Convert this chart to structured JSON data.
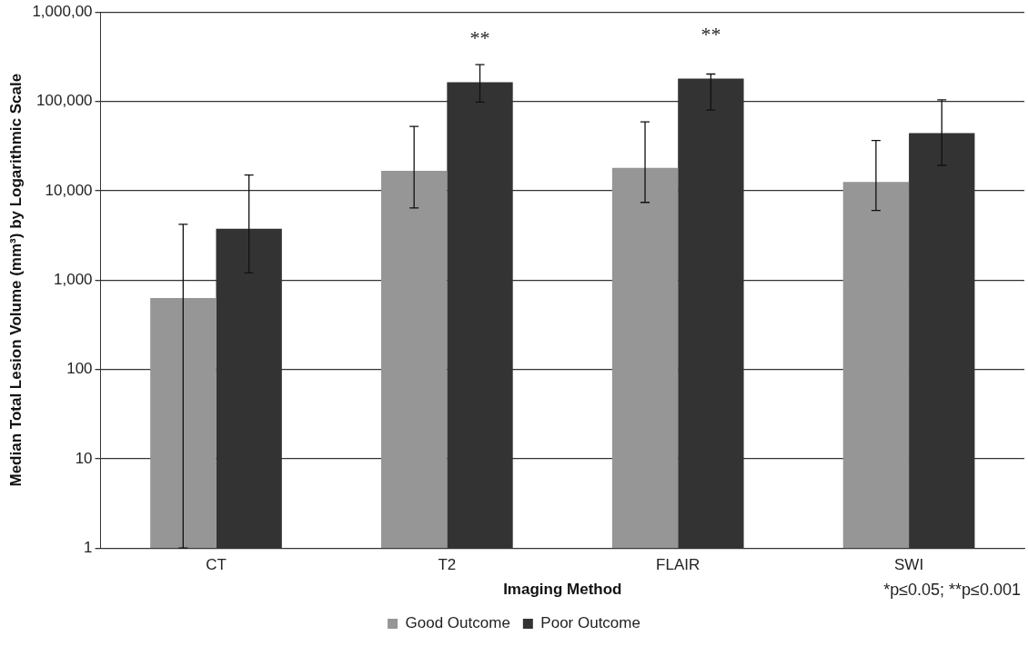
{
  "chart_data": {
    "type": "bar",
    "xlabel": "Imaging Method",
    "ylabel": "Median Total Lesion Volume (mm³) by Logarithmic Scale",
    "categories": [
      "CT",
      "T2",
      "FLAIR",
      "SWI"
    ],
    "series": [
      {
        "name": "Good Outcome",
        "color": "#969696",
        "values": [
          630,
          16700,
          18000,
          12500
        ],
        "errors": [
          [
            1,
            4200
          ],
          [
            6400,
            52500
          ],
          [
            7400,
            59000
          ],
          [
            6000,
            36500
          ]
        ]
      },
      {
        "name": "Poor Outcome",
        "color": "#333333",
        "values": [
          3750,
          164000,
          180000,
          44000
        ],
        "errors": [
          [
            1200,
            15000
          ],
          [
            98000,
            257000
          ],
          [
            80000,
            202000
          ],
          [
            19200,
            104000
          ]
        ]
      }
    ],
    "log": "y",
    "ylim": [
      1,
      1000000
    ],
    "yticks": [
      1,
      10,
      100,
      "1,000",
      "10,000",
      "100,000",
      {
        "value": 1000000,
        "label": "1,000,00"
      }
    ],
    "grid": "y",
    "legend": "bottom",
    "annotations": [
      {
        "text": "**",
        "x": "T2",
        "y": 164000
      },
      {
        "text": "**",
        "x": "FLAIR",
        "y": 180000
      },
      "*p≤0.05; **p≤0.001"
    ]
  }
}
